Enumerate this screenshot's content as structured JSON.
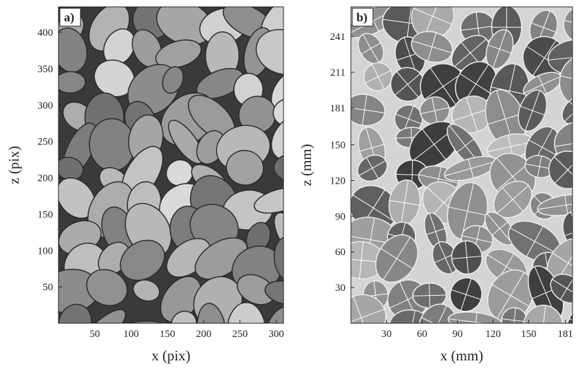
{
  "panels": [
    {
      "label": "a)",
      "xlabel": "x (pix)",
      "ylabel": "z (pix)",
      "xlim": [
        0,
        310
      ],
      "ylim": [
        0,
        435
      ],
      "xticks": [
        50,
        100,
        150,
        200,
        250,
        300
      ],
      "yticks": [
        50,
        100,
        150,
        200,
        250,
        300,
        350,
        400
      ]
    },
    {
      "label": "b)",
      "xlabel": "x (mm)",
      "ylabel": "z (mm)",
      "xlim": [
        0,
        187
      ],
      "ylim": [
        0,
        266
      ],
      "xticks": [
        30,
        60,
        90,
        120,
        150,
        181
      ],
      "yticks": [
        30,
        60,
        90,
        120,
        150,
        181,
        211,
        241
      ]
    }
  ]
}
